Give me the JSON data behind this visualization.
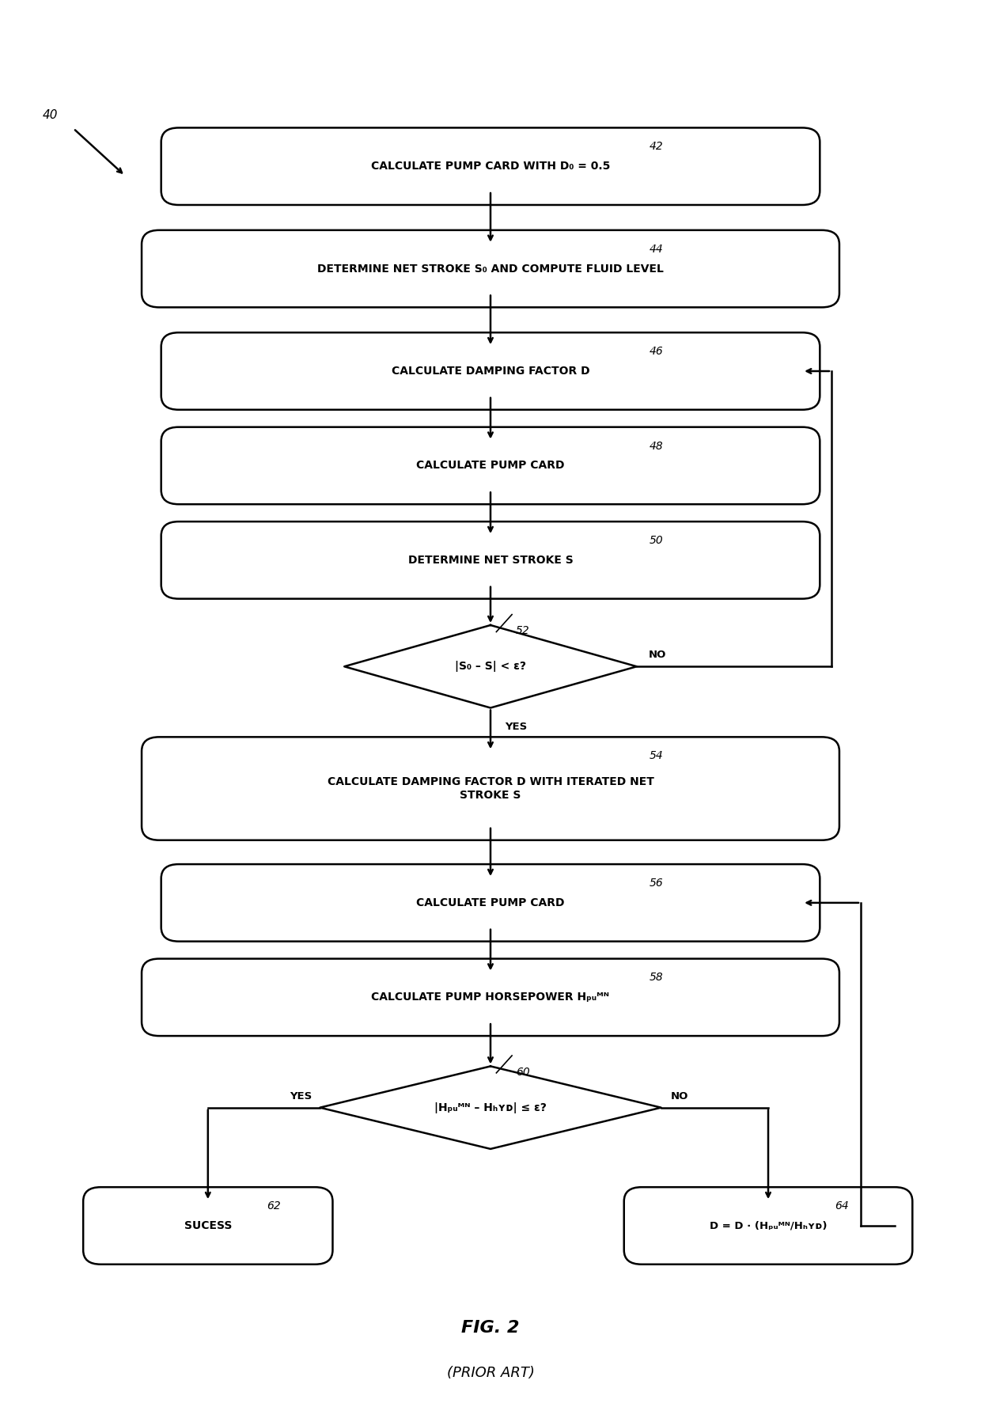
{
  "fig_width": 12.4,
  "fig_height": 17.97,
  "background_color": "#ffffff",
  "title": "FIG. 2",
  "subtitle": "(PRIOR ART)",
  "label_40": "40",
  "label_42": "42",
  "label_44": "44",
  "label_46": "46",
  "label_48": "48",
  "label_50": "50",
  "label_52": "52",
  "label_54": "54",
  "label_56": "56",
  "label_58": "58",
  "label_60": "60",
  "label_62": "62",
  "label_64": "64",
  "box1_text": "CALCULATE PUMP CARD WITH D₀ = 0.5",
  "box2_text": "DETERMINE NET STROKE S₀ AND COMPUTE FLUID LEVEL",
  "box3_text": "CALCULATE DAMPING FACTOR D",
  "box4_text": "CALCULATE PUMP CARD",
  "box5_text": "DETERMINE NET STROKE S",
  "diamond1_text": "|S₀ – S| < ε?",
  "box6_line1": "CALCULATE DAMPING FACTOR D WITH ITERATED NET",
  "box6_line2": "STROKE S",
  "box7_text": "CALCULATE PUMP CARD",
  "box8_text": "CALCULATE PUMP HORSEPOWER Hₚᵤᴹᴺ",
  "diamond2_text": "|Hₚᵤᴹᴺ – Hₕʏᴅ| ≤ ε?",
  "box9_text": "SUCESS",
  "box10_text": "D = D · (Hₚᵤᴹᴺ/Hₕʏᴅ)",
  "yes_label": "YES",
  "no_label": "NO",
  "box_facecolor": "#ffffff",
  "box_edgecolor": "#000000",
  "text_color": "#000000",
  "arrow_color": "#000000"
}
